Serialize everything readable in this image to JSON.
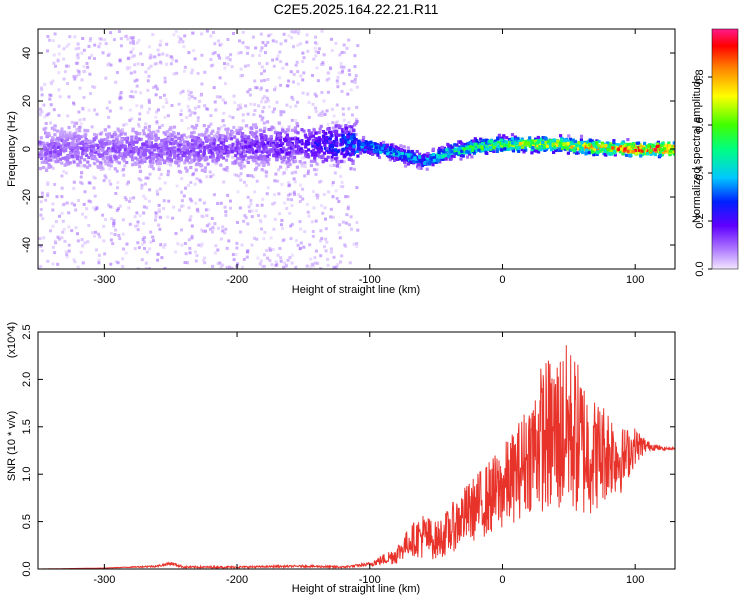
{
  "title": "C2E5.2025.164.22.21.R11",
  "chart_data": [
    {
      "type": "heatmap",
      "xlabel": "Height of straight line (km)",
      "ylabel": "Frequency (Hz)",
      "xlim": [
        -350,
        130
      ],
      "ylim": [
        -50,
        50
      ],
      "xticks": [
        -300,
        -200,
        -100,
        0,
        100
      ],
      "yticks": [
        -40,
        -20,
        0,
        20,
        40
      ],
      "colorbar": {
        "label": "Normalized spectral amplitude",
        "range": [
          0.0,
          1.0
        ],
        "ticks": [
          0.0,
          0.2,
          0.4,
          0.6,
          0.8
        ],
        "colormap": "rainbow (purple → blue → cyan → green → yellow → red)"
      },
      "ridge": {
        "x": [
          -350,
          -300,
          -250,
          -200,
          -150,
          -120,
          -100,
          -80,
          -60,
          -40,
          -20,
          0,
          20,
          40,
          60,
          80,
          100,
          130
        ],
        "freq_hz": [
          0,
          0,
          0,
          1,
          2,
          2,
          1,
          -2,
          -5,
          -1,
          1,
          2,
          2,
          2,
          1,
          0.5,
          0,
          0
        ],
        "amplitude": [
          0.12,
          0.12,
          0.13,
          0.15,
          0.2,
          0.3,
          0.4,
          0.45,
          0.4,
          0.5,
          0.6,
          0.65,
          0.7,
          0.72,
          0.75,
          0.8,
          0.9,
          0.95
        ]
      },
      "grid": false
    },
    {
      "type": "line",
      "xlabel": "Height of straight line (km)",
      "ylabel": "SNR (10 * v/v)",
      "y_multiplier_label": "(x10^4)",
      "xlim": [
        -350,
        130
      ],
      "ylim": [
        0.0,
        2.5
      ],
      "xticks": [
        -300,
        -200,
        -100,
        0,
        100
      ],
      "yticks": [
        0.0,
        0.5,
        1.0,
        1.5,
        2.0,
        2.5
      ],
      "series": [
        {
          "color": "#e8332b",
          "x": [
            -350,
            -300,
            -260,
            -250,
            -240,
            -200,
            -150,
            -120,
            -100,
            -80,
            -70,
            -60,
            -50,
            -40,
            -30,
            -20,
            -10,
            0,
            10,
            20,
            30,
            40,
            50,
            60,
            70,
            80,
            90,
            100,
            110,
            120,
            130
          ],
          "y": [
            0.0,
            0.01,
            0.03,
            0.06,
            0.02,
            0.02,
            0.03,
            0.02,
            0.05,
            0.15,
            0.3,
            0.35,
            0.3,
            0.4,
            0.55,
            0.65,
            0.75,
            0.85,
            1.0,
            1.2,
            1.4,
            1.4,
            1.5,
            1.3,
            1.2,
            1.25,
            1.15,
            1.3,
            1.3,
            1.27,
            1.27
          ],
          "noise_amplitude": [
            0.0,
            0.0,
            0.01,
            0.02,
            0.01,
            0.01,
            0.01,
            0.01,
            0.02,
            0.1,
            0.15,
            0.25,
            0.2,
            0.25,
            0.3,
            0.35,
            0.4,
            0.45,
            0.5,
            0.6,
            0.8,
            0.9,
            0.9,
            0.8,
            0.6,
            0.5,
            0.35,
            0.2,
            0.05,
            0.02,
            0.01
          ]
        }
      ],
      "grid": false
    }
  ]
}
